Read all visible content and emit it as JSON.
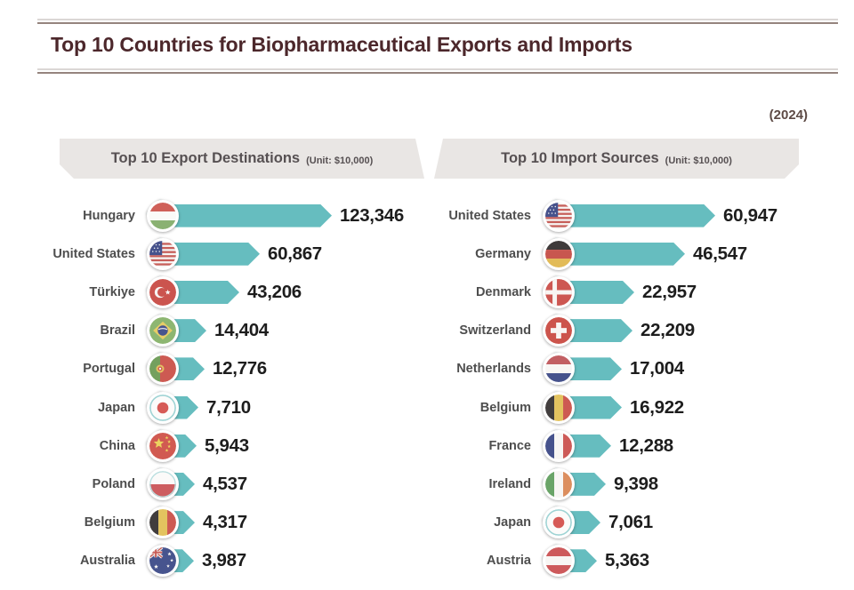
{
  "page": {
    "title": "Top 10 Countries for Biopharmaceutical Exports and Imports",
    "year_note": "(2024)"
  },
  "colors": {
    "bar_teal": "#66bdbf",
    "title_maroon": "#4c272b",
    "banner_bg": "#e9e6e4",
    "rule_brown": "#95847e",
    "value_text": "#1d1d1d",
    "country_label_text": "#4e4e4e"
  },
  "chart_data": [
    {
      "type": "bar",
      "orientation": "horizontal",
      "title": "Top 10 Export Destinations",
      "unit_label": "(Unit: $10,000)",
      "categories": [
        "Hungary",
        "United States",
        "Türkiye",
        "Brazil",
        "Portugal",
        "Japan",
        "China",
        "Poland",
        "Belgium",
        "Australia"
      ],
      "values": [
        123346,
        60867,
        43206,
        14404,
        12776,
        7710,
        5943,
        4537,
        4317,
        3987
      ],
      "value_labels": [
        "123,346",
        "60,867",
        "43,206",
        "14,404",
        "12,776",
        "7,710",
        "5,943",
        "4,537",
        "4,317",
        "3,987"
      ],
      "flags": [
        "hungary",
        "united-states",
        "turkiye",
        "brazil",
        "portugal",
        "japan",
        "china",
        "poland",
        "belgium",
        "australia"
      ],
      "max_value": 123346
    },
    {
      "type": "bar",
      "orientation": "horizontal",
      "title": "Top 10 Import Sources",
      "unit_label": "(Unit: $10,000)",
      "categories": [
        "United States",
        "Germany",
        "Denmark",
        "Switzerland",
        "Netherlands",
        "Belgium",
        "France",
        "Ireland",
        "Japan",
        "Austria"
      ],
      "values": [
        60947,
        46547,
        22957,
        22209,
        17004,
        16922,
        12288,
        9398,
        7061,
        5363
      ],
      "value_labels": [
        "60,947",
        "46,547",
        "22,957",
        "22,209",
        "17,004",
        "16,922",
        "12,288",
        "9,398",
        "7,061",
        "5,363"
      ],
      "flags": [
        "united-states",
        "germany",
        "denmark",
        "switzerland",
        "netherlands",
        "belgium",
        "france",
        "ireland",
        "japan",
        "austria"
      ],
      "max_value": 60947
    }
  ]
}
